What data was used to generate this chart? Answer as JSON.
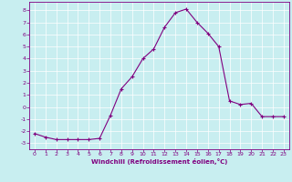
{
  "x": [
    0,
    1,
    2,
    3,
    4,
    5,
    6,
    7,
    8,
    9,
    10,
    11,
    12,
    13,
    14,
    15,
    16,
    17,
    18,
    19,
    20,
    21,
    22,
    23
  ],
  "y": [
    -2.2,
    -2.5,
    -2.7,
    -2.7,
    -2.7,
    -2.7,
    -2.6,
    -0.7,
    1.5,
    2.5,
    4.0,
    4.8,
    6.6,
    7.8,
    8.1,
    7.0,
    6.1,
    5.0,
    0.5,
    0.2,
    0.3,
    -0.8,
    -0.8,
    -0.8
  ],
  "line_color": "#800080",
  "marker": "+",
  "marker_color": "#800080",
  "bg_color": "#c8eef0",
  "grid_color": "#ffffff",
  "xlabel": "Windchill (Refroidissement éolien,°C)",
  "xlabel_color": "#800080",
  "tick_color": "#800080",
  "spine_color": "#800080",
  "xlim": [
    -0.5,
    23.5
  ],
  "ylim": [
    -3.5,
    8.7
  ],
  "yticks": [
    -3,
    -2,
    -1,
    0,
    1,
    2,
    3,
    4,
    5,
    6,
    7,
    8
  ],
  "xticks": [
    0,
    1,
    2,
    3,
    4,
    5,
    6,
    7,
    8,
    9,
    10,
    11,
    12,
    13,
    14,
    15,
    16,
    17,
    18,
    19,
    20,
    21,
    22,
    23
  ]
}
